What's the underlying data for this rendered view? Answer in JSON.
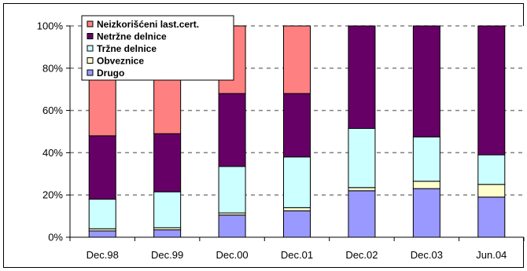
{
  "chart_data": {
    "type": "bar",
    "stacked": true,
    "percent": true,
    "categories": [
      "Dec.98",
      "Dec.99",
      "Dec.00",
      "Dec.01",
      "Dec.02",
      "Dec.03",
      "Jun.04"
    ],
    "series": [
      {
        "name": "Drugo",
        "color": "#9999FF",
        "values": [
          3,
          3.5,
          10.5,
          12.5,
          22,
          23,
          19
        ]
      },
      {
        "name": "Obveznice",
        "color": "#FFFFCC",
        "values": [
          1,
          1,
          1,
          1.5,
          1.5,
          3.5,
          6
        ]
      },
      {
        "name": "Tržne delnice",
        "color": "#CCFFFF",
        "values": [
          14,
          17,
          22,
          24,
          28,
          21,
          14
        ]
      },
      {
        "name": "Netržne delnice",
        "color": "#660066",
        "values": [
          30,
          27.5,
          34.5,
          30,
          48.5,
          52.5,
          61
        ]
      },
      {
        "name": "Neizkorišćeni  last.cert.",
        "color": "#FF8080",
        "values": [
          52,
          51,
          32,
          32,
          0,
          0,
          0
        ]
      }
    ],
    "legend_order": [
      "Neizkorišćeni  last.cert.",
      "Netržne delnice",
      "Tržne delnice",
      "Obveznice",
      "Drugo"
    ],
    "ylim": [
      0,
      100
    ],
    "yticks": [
      "0%",
      "20%",
      "40%",
      "60%",
      "80%",
      "100%"
    ],
    "grid": "horizontal-dashed",
    "legend_position": "top-left",
    "title": "",
    "xlabel": "",
    "ylabel": ""
  }
}
